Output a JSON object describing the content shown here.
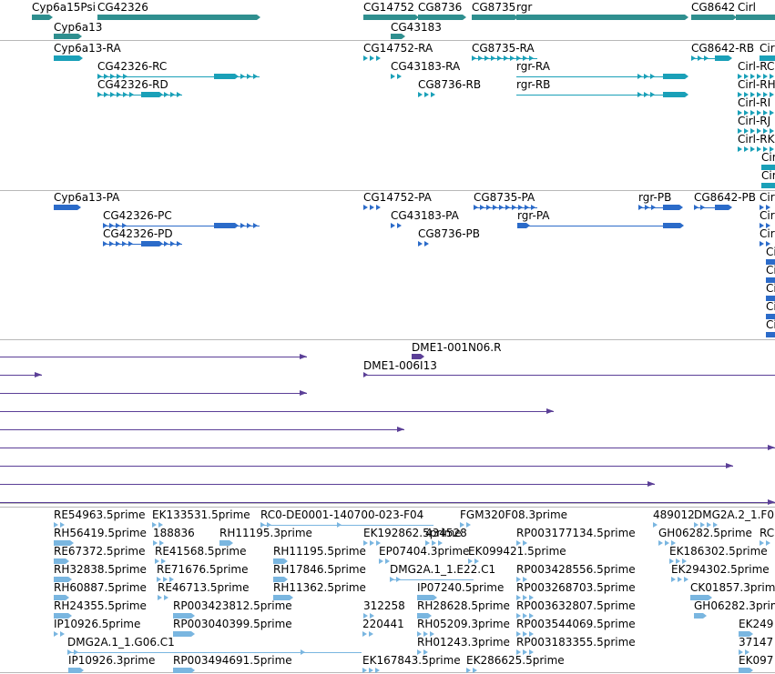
{
  "view": {
    "colors": {
      "gene": "#2f8f8f",
      "rna": "#1aa0b8",
      "protein": "#2b6bc9",
      "clone": "#5b3f97",
      "est": "#7ab6e0",
      "divider": "#b8b8b8"
    }
  },
  "tracks": {
    "genes": {
      "features": [
        {
          "label": "Cyp6a15Psi"
        },
        {
          "label": "CG42326"
        },
        {
          "label": "Cyp6a13"
        },
        {
          "label": "CG14752"
        },
        {
          "label": "CG8736"
        },
        {
          "label": "CG43183"
        },
        {
          "label": "CG8735"
        },
        {
          "label": "rgr"
        },
        {
          "label": "CG8642"
        },
        {
          "label": "Cirl"
        }
      ]
    },
    "transcripts": {
      "features": [
        {
          "label": "Cyp6a13-RA"
        },
        {
          "label": "CG42326-RC"
        },
        {
          "label": "CG42326-RD"
        },
        {
          "label": "CG14752-RA"
        },
        {
          "label": "CG43183-RA"
        },
        {
          "label": "CG8736-RB"
        },
        {
          "label": "CG8735-RA"
        },
        {
          "label": "rgr-RA"
        },
        {
          "label": "rgr-RB"
        },
        {
          "label": "CG8642-RB"
        },
        {
          "label": "Cir"
        },
        {
          "label": "Cirl-RC"
        },
        {
          "label": "Cirl-RH"
        },
        {
          "label": "Cirl-RI"
        },
        {
          "label": "Cirl-RJ"
        },
        {
          "label": "Cirl-RK"
        },
        {
          "label": "Cir"
        },
        {
          "label": "Cir"
        }
      ]
    },
    "proteins": {
      "features": [
        {
          "label": "Cyp6a13-PA"
        },
        {
          "label": "CG42326-PC"
        },
        {
          "label": "CG42326-PD"
        },
        {
          "label": "CG14752-PA"
        },
        {
          "label": "CG43183-PA"
        },
        {
          "label": "CG8736-PB"
        },
        {
          "label": "CG8735-PA"
        },
        {
          "label": "rgr-PA"
        },
        {
          "label": "rgr-PB"
        },
        {
          "label": "CG8642-PB"
        },
        {
          "label": "Cirl"
        },
        {
          "label": "Cirl"
        },
        {
          "label": "Cirl"
        },
        {
          "label": "Ci"
        },
        {
          "label": "Ci"
        },
        {
          "label": "Ci"
        },
        {
          "label": "Ci"
        },
        {
          "label": "Ci"
        }
      ]
    },
    "clones": {
      "features": [
        {
          "label": "DME1-001N06.R"
        },
        {
          "label": "DME1-006I13"
        }
      ]
    },
    "ests": {
      "features": [
        {
          "label": "RE54963.5prime"
        },
        {
          "label": "EK133531.5prime"
        },
        {
          "label": "RC0-DE0001-140700-023-F04"
        },
        {
          "label": "FGM320F08.3prime"
        },
        {
          "label": "489012"
        },
        {
          "label": "DMG2A.2_1.F0"
        },
        {
          "label": "RH56419.5prime"
        },
        {
          "label": "188836"
        },
        {
          "label": "RH11195.3prime"
        },
        {
          "label": "EK192862.5prime"
        },
        {
          "label": "434528"
        },
        {
          "label": "RP003177134.5prime"
        },
        {
          "label": "GH06282.5prime"
        },
        {
          "label": "RC"
        },
        {
          "label": "RE67372.5prime"
        },
        {
          "label": "RE41568.5prime"
        },
        {
          "label": "RH11195.5prime"
        },
        {
          "label": "EP07404.3prime"
        },
        {
          "label": "EK099421.5prime"
        },
        {
          "label": "EK186302.5prime"
        },
        {
          "label": "RH32838.5prime"
        },
        {
          "label": "RE71676.5prime"
        },
        {
          "label": "RH17846.5prime"
        },
        {
          "label": "DMG2A.1_1.E22.C1"
        },
        {
          "label": "RP003428556.5prime"
        },
        {
          "label": "EK294302.5prime"
        },
        {
          "label": "RH60887.5prime"
        },
        {
          "label": "RE46713.5prime"
        },
        {
          "label": "RH11362.5prime"
        },
        {
          "label": "IP07240.5prime"
        },
        {
          "label": "RP003268703.5prime"
        },
        {
          "label": "CK01857.3prime"
        },
        {
          "label": "RH24355.5prime"
        },
        {
          "label": "RP003423812.5prime"
        },
        {
          "label": "312258"
        },
        {
          "label": "RH28628.5prime"
        },
        {
          "label": "RP003632807.5prime"
        },
        {
          "label": "GH06282.3prim"
        },
        {
          "label": "IP10926.5prime"
        },
        {
          "label": "RP003040399.5prime"
        },
        {
          "label": "220441"
        },
        {
          "label": "RH05209.3prime"
        },
        {
          "label": "RP003544069.5prime"
        },
        {
          "label": "EK249"
        },
        {
          "label": "DMG2A.1_1.G06.C1"
        },
        {
          "label": "RH01243.3prime"
        },
        {
          "label": "RP003183355.5prime"
        },
        {
          "label": "37147"
        },
        {
          "label": "IP10926.3prime"
        },
        {
          "label": "RP003494691.5prime"
        },
        {
          "label": "EK167843.5prime"
        },
        {
          "label": "EK286625.5prime"
        },
        {
          "label": "EK097"
        }
      ]
    }
  }
}
